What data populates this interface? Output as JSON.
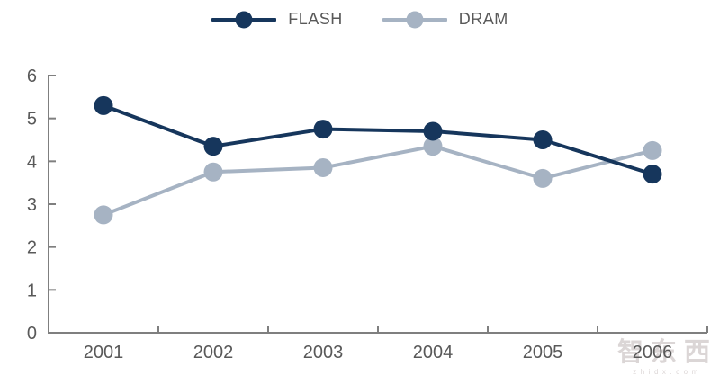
{
  "legend": {
    "items": [
      {
        "label": "FLASH",
        "color": "#16365C"
      },
      {
        "label": "DRAM",
        "color": "#A6B3C3"
      }
    ]
  },
  "watermark": {
    "text": "智东西",
    "subtext": "zhidx.com"
  },
  "chart_data": {
    "type": "line",
    "title": "",
    "xlabel": "",
    "ylabel": "",
    "categories": [
      "2001",
      "2002",
      "2003",
      "2004",
      "2005",
      "2006"
    ],
    "series": [
      {
        "name": "FLASH",
        "color": "#16365C",
        "values": [
          5.3,
          4.35,
          4.75,
          4.7,
          4.5,
          3.7
        ]
      },
      {
        "name": "DRAM",
        "color": "#A6B3C3",
        "values": [
          2.75,
          3.75,
          3.85,
          4.35,
          3.6,
          4.25
        ]
      }
    ],
    "ylim": [
      0,
      6
    ],
    "yticks": [
      0,
      1,
      2,
      3,
      4,
      5,
      6
    ],
    "grid": false,
    "legend_position": "top",
    "marker": "circle",
    "axis_color": "#7F7F7F",
    "tick_label_color": "#595959",
    "tick_label_font_size": 20
  }
}
